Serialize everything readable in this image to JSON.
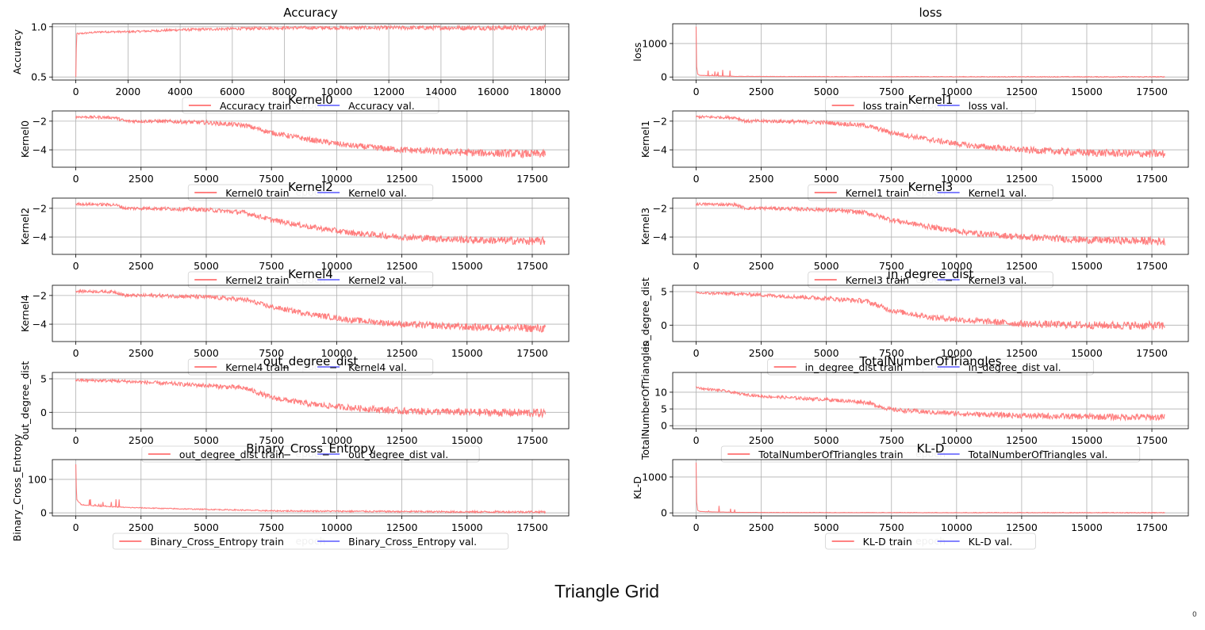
{
  "figure": {
    "caption": "Triangle Grid",
    "corner_mark": "0",
    "train_color": "#ff7070",
    "val_color": "#7070ff"
  },
  "chart_data": [
    {
      "type": "line",
      "title": "Accuracy",
      "ylabel": "Accuracy",
      "xlabel": "epoch",
      "xlim": [
        0,
        18000
      ],
      "ylim": [
        0.5,
        1.0
      ],
      "xticks": [
        0,
        2000,
        4000,
        6000,
        8000,
        10000,
        12000,
        14000,
        16000,
        18000
      ],
      "yticks": [
        0.5,
        1.0
      ],
      "ytick_labels": [
        "0.5",
        "1.0"
      ],
      "grid": true,
      "legend_position": "bottom-center",
      "series": [
        {
          "name": "Accuracy train",
          "role": "train",
          "x": [
            0,
            30,
            100,
            500,
            1000,
            2000,
            3000,
            4000,
            6000,
            8000,
            10000,
            12000,
            14000,
            16000,
            18000
          ],
          "values": [
            0.5,
            0.93,
            0.93,
            0.94,
            0.95,
            0.95,
            0.96,
            0.97,
            0.98,
            0.99,
            0.99,
            0.99,
            0.99,
            0.99,
            0.99
          ],
          "noise": 0.02,
          "spike": 0.0
        },
        {
          "name": "Accuracy val.",
          "role": "val",
          "x": [],
          "values": []
        }
      ]
    },
    {
      "type": "line",
      "title": "loss",
      "ylabel": "loss",
      "xlabel": "epoch",
      "xlim": [
        0,
        18000
      ],
      "ylim": [
        0,
        1500
      ],
      "xticks": [
        0,
        2500,
        5000,
        7500,
        10000,
        12500,
        15000,
        17500
      ],
      "yticks": [
        0,
        1000
      ],
      "ytick_labels": [
        "0",
        "1000"
      ],
      "grid": true,
      "legend_position": "bottom-center",
      "series": [
        {
          "name": "loss train",
          "role": "train",
          "x": [
            0,
            20,
            60,
            150,
            500,
            1500,
            3000,
            6000,
            10000,
            14000,
            18000
          ],
          "values": [
            1500,
            300,
            80,
            50,
            40,
            20,
            15,
            10,
            8,
            6,
            5
          ],
          "noise": 10,
          "spike": 200
        },
        {
          "name": "loss val.",
          "role": "val",
          "x": [],
          "values": []
        }
      ]
    },
    {
      "type": "line",
      "title": "Kernel0",
      "ylabel": "Kernel0",
      "xlabel": "epoch",
      "xlim": [
        0,
        18000
      ],
      "ylim": [
        -5,
        -1.5
      ],
      "xticks": [
        0,
        2500,
        5000,
        7500,
        10000,
        12500,
        15000,
        17500
      ],
      "yticks": [
        -4,
        -2
      ],
      "ytick_labels": [
        "−4",
        "−2"
      ],
      "grid": true,
      "legend_position": "bottom-center",
      "series": [
        {
          "name": "Kernel0 train",
          "role": "train",
          "x": [
            0,
            1500,
            1900,
            3000,
            5000,
            6500,
            7500,
            9000,
            10500,
            12500,
            15000,
            18000
          ],
          "values": [
            -1.7,
            -1.75,
            -2.0,
            -2.0,
            -2.1,
            -2.3,
            -2.8,
            -3.3,
            -3.7,
            -4.0,
            -4.2,
            -4.3
          ],
          "noise": 0.22,
          "spike": 0.0
        },
        {
          "name": "Kernel0 val.",
          "role": "val",
          "x": [],
          "values": []
        }
      ]
    },
    {
      "type": "line",
      "title": "Kernel1",
      "ylabel": "Kernel1",
      "xlabel": "epoch",
      "xlim": [
        0,
        18000
      ],
      "ylim": [
        -5,
        -1.5
      ],
      "xticks": [
        0,
        2500,
        5000,
        7500,
        10000,
        12500,
        15000,
        17500
      ],
      "yticks": [
        -4,
        -2
      ],
      "ytick_labels": [
        "−4",
        "−2"
      ],
      "grid": true,
      "legend_position": "bottom-center",
      "series": [
        {
          "name": "Kernel1 train",
          "role": "train",
          "x": [
            0,
            1500,
            1900,
            3000,
            5000,
            6500,
            7500,
            9000,
            10500,
            12500,
            15000,
            18000
          ],
          "values": [
            -1.7,
            -1.75,
            -2.0,
            -2.0,
            -2.1,
            -2.3,
            -2.8,
            -3.3,
            -3.7,
            -4.0,
            -4.2,
            -4.3
          ],
          "noise": 0.22,
          "spike": 0.0
        },
        {
          "name": "Kernel1 val.",
          "role": "val",
          "x": [],
          "values": []
        }
      ]
    },
    {
      "type": "line",
      "title": "Kernel2",
      "ylabel": "Kernel2",
      "xlabel": "epoch",
      "xlim": [
        0,
        18000
      ],
      "ylim": [
        -5,
        -1.5
      ],
      "xticks": [
        0,
        2500,
        5000,
        7500,
        10000,
        12500,
        15000,
        17500
      ],
      "yticks": [
        -4,
        -2
      ],
      "ytick_labels": [
        "−4",
        "−2"
      ],
      "grid": true,
      "legend_position": "bottom-center",
      "series": [
        {
          "name": "Kernel2 train",
          "role": "train",
          "x": [
            0,
            1500,
            1900,
            3000,
            5000,
            6500,
            7500,
            9000,
            10500,
            12500,
            15000,
            18000
          ],
          "values": [
            -1.7,
            -1.75,
            -2.0,
            -2.0,
            -2.1,
            -2.3,
            -2.8,
            -3.3,
            -3.7,
            -4.0,
            -4.2,
            -4.3
          ],
          "noise": 0.22,
          "spike": 0.0
        },
        {
          "name": "Kernel2 val.",
          "role": "val",
          "x": [],
          "values": []
        }
      ]
    },
    {
      "type": "line",
      "title": "Kernel3",
      "ylabel": "Kernel3",
      "xlabel": "epoch",
      "xlim": [
        0,
        18000
      ],
      "ylim": [
        -5,
        -1.5
      ],
      "xticks": [
        0,
        2500,
        5000,
        7500,
        10000,
        12500,
        15000,
        17500
      ],
      "yticks": [
        -4,
        -2
      ],
      "ytick_labels": [
        "−4",
        "−2"
      ],
      "grid": true,
      "legend_position": "bottom-center",
      "series": [
        {
          "name": "Kernel3 train",
          "role": "train",
          "x": [
            0,
            1500,
            1900,
            3000,
            5000,
            6500,
            7500,
            9000,
            10500,
            12500,
            15000,
            18000
          ],
          "values": [
            -1.7,
            -1.75,
            -2.0,
            -2.0,
            -2.1,
            -2.3,
            -2.8,
            -3.3,
            -3.7,
            -4.0,
            -4.2,
            -4.3
          ],
          "noise": 0.22,
          "spike": 0.0
        },
        {
          "name": "Kernel3 val.",
          "role": "val",
          "x": [],
          "values": []
        }
      ]
    },
    {
      "type": "line",
      "title": "Kernel4",
      "ylabel": "Kernel4",
      "xlabel": "epoch",
      "xlim": [
        0,
        18000
      ],
      "ylim": [
        -5,
        -1.5
      ],
      "xticks": [
        0,
        2500,
        5000,
        7500,
        10000,
        12500,
        15000,
        17500
      ],
      "yticks": [
        -4,
        -2
      ],
      "ytick_labels": [
        "−4",
        "−2"
      ],
      "grid": true,
      "legend_position": "bottom-center",
      "series": [
        {
          "name": "Kernel4 train",
          "role": "train",
          "x": [
            0,
            1500,
            1900,
            3000,
            5000,
            6500,
            7500,
            9000,
            10500,
            12500,
            15000,
            18000
          ],
          "values": [
            -1.7,
            -1.75,
            -2.0,
            -2.0,
            -2.1,
            -2.3,
            -2.8,
            -3.3,
            -3.7,
            -4.0,
            -4.2,
            -4.3
          ],
          "noise": 0.22,
          "spike": 0.0
        },
        {
          "name": "Kernel4 val.",
          "role": "val",
          "x": [],
          "values": []
        }
      ]
    },
    {
      "type": "line",
      "title": "in_degree_dist",
      "ylabel": "in_degree_dist",
      "xlabel": "epoch",
      "xlim": [
        0,
        18000
      ],
      "ylim": [
        -2,
        5.5
      ],
      "xticks": [
        0,
        2500,
        5000,
        7500,
        10000,
        12500,
        15000,
        17500
      ],
      "yticks": [
        0,
        5
      ],
      "ytick_labels": [
        "0",
        "5"
      ],
      "grid": true,
      "legend_position": "bottom-center",
      "series": [
        {
          "name": "in_degree_dist train",
          "role": "train",
          "x": [
            0,
            1500,
            3000,
            5000,
            6500,
            7500,
            9000,
            10500,
            12500,
            15000,
            18000
          ],
          "values": [
            4.8,
            4.7,
            4.4,
            4.0,
            3.6,
            2.2,
            1.2,
            0.7,
            0.2,
            0.0,
            -0.1
          ],
          "noise": 0.5,
          "spike": 0.0
        },
        {
          "name": "in_degree_dist val.",
          "role": "val",
          "x": [],
          "values": []
        }
      ]
    },
    {
      "type": "line",
      "title": "out_degree_dist",
      "ylabel": "out_degree_dist",
      "xlabel": "epoch",
      "xlim": [
        0,
        18000
      ],
      "ylim": [
        -2,
        5.5
      ],
      "xticks": [
        0,
        2500,
        5000,
        7500,
        10000,
        12500,
        15000,
        17500
      ],
      "yticks": [
        0,
        5
      ],
      "ytick_labels": [
        "0",
        "5"
      ],
      "grid": true,
      "legend_position": "bottom-center",
      "series": [
        {
          "name": "out_degree_dist train",
          "role": "train",
          "x": [
            0,
            1500,
            3000,
            5000,
            6500,
            7500,
            9000,
            10500,
            12500,
            15000,
            18000
          ],
          "values": [
            4.8,
            4.7,
            4.4,
            4.0,
            3.6,
            2.2,
            1.2,
            0.7,
            0.2,
            0.0,
            -0.1
          ],
          "noise": 0.5,
          "spike": 0.0
        },
        {
          "name": "out_degree_dist val.",
          "role": "val",
          "x": [],
          "values": []
        }
      ]
    },
    {
      "type": "line",
      "title": "TotalNumberOfTriangles",
      "ylabel": "TotalNumberOfTriangles",
      "xlabel": "epoch",
      "xlim": [
        0,
        18000
      ],
      "ylim": [
        0,
        15
      ],
      "xticks": [
        0,
        2500,
        5000,
        7500,
        10000,
        12500,
        15000,
        17500
      ],
      "yticks": [
        0,
        5,
        10
      ],
      "ytick_labels": [
        "0",
        "5",
        "10"
      ],
      "grid": true,
      "legend_position": "bottom-center",
      "series": [
        {
          "name": "TotalNumberOfTriangles train",
          "role": "train",
          "x": [
            0,
            300,
            1000,
            1700,
            2500,
            4000,
            5000,
            6500,
            7500,
            9000,
            10500,
            12500,
            15000,
            18000
          ],
          "values": [
            11.5,
            11,
            10.5,
            9.5,
            8.8,
            8.2,
            7.8,
            7.0,
            4.8,
            4.0,
            3.5,
            3.0,
            2.7,
            2.5
          ],
          "noise": 0.8,
          "spike": 0.0
        },
        {
          "name": "TotalNumberOfTriangles val.",
          "role": "val",
          "x": [],
          "values": []
        }
      ]
    },
    {
      "type": "line",
      "title": "Binary_Cross_Entropy",
      "ylabel": "Binary_Cross_Entropy",
      "xlabel": "epoch",
      "xlim": [
        0,
        18000
      ],
      "ylim": [
        0,
        150
      ],
      "xticks": [
        0,
        2500,
        5000,
        7500,
        10000,
        12500,
        15000,
        17500
      ],
      "yticks": [
        0,
        100
      ],
      "ytick_labels": [
        "0",
        "100"
      ],
      "grid": true,
      "legend_position": "bottom-center",
      "series": [
        {
          "name": "Binary_Cross_Entropy train",
          "role": "train",
          "x": [
            0,
            30,
            200,
            500,
            1000,
            2000,
            4000,
            6000,
            7500,
            10000,
            12500,
            15000,
            18000
          ],
          "values": [
            145,
            40,
            25,
            22,
            20,
            16,
            12,
            9,
            6,
            5,
            4,
            3,
            3
          ],
          "noise": 2.5,
          "spike": 25
        },
        {
          "name": "Binary_Cross_Entropy val.",
          "role": "val",
          "x": [],
          "values": []
        }
      ]
    },
    {
      "type": "line",
      "title": "KL-D",
      "ylabel": "KL-D",
      "xlabel": "epoch",
      "xlim": [
        0,
        18000
      ],
      "ylim": [
        0,
        1400
      ],
      "xticks": [
        0,
        2500,
        5000,
        7500,
        10000,
        12500,
        15000,
        17500
      ],
      "yticks": [
        0,
        1000
      ],
      "ytick_labels": [
        "0",
        "1000"
      ],
      "grid": true,
      "legend_position": "bottom-center",
      "series": [
        {
          "name": "KL-D train",
          "role": "train",
          "x": [
            0,
            20,
            60,
            150,
            500,
            1500,
            3000,
            6000,
            10000,
            14000,
            18000
          ],
          "values": [
            1400,
            300,
            70,
            40,
            30,
            15,
            10,
            8,
            6,
            5,
            4
          ],
          "noise": 8,
          "spike": 180
        },
        {
          "name": "KL-D val.",
          "role": "val",
          "x": [],
          "values": []
        }
      ]
    }
  ]
}
